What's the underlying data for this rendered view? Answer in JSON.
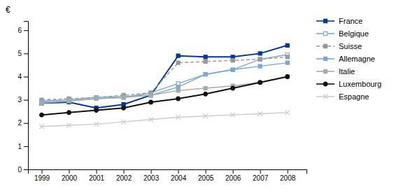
{
  "chart_data": {
    "type": "line",
    "y_label": "€",
    "x": [
      1999,
      2000,
      2001,
      2002,
      2003,
      2004,
      2005,
      2006,
      2007,
      2008
    ],
    "series": [
      {
        "name": "France",
        "color": "#003a99",
        "marker": "square",
        "line_style": "solid",
        "values": [
          2.85,
          2.9,
          2.65,
          2.8,
          3.2,
          4.9,
          4.85,
          4.85,
          5.0,
          5.35
        ]
      },
      {
        "name": "Belgique",
        "color": "#7ba7d4",
        "marker": "square-open",
        "line_style": "solid",
        "values": [
          2.9,
          2.95,
          3.05,
          3.1,
          3.3,
          3.7,
          4.1,
          4.3,
          4.75,
          4.95
        ]
      },
      {
        "name": "Suisse",
        "color": "#999999",
        "marker": "square",
        "line_style": "dashed",
        "values": [
          3.0,
          3.05,
          3.1,
          3.2,
          3.3,
          4.6,
          4.65,
          4.7,
          4.75,
          4.85
        ]
      },
      {
        "name": "Allemagne",
        "color": "#7ba7d4",
        "marker": "square",
        "line_style": "solid",
        "values": [
          2.95,
          3.0,
          3.1,
          3.15,
          3.2,
          3.55,
          4.1,
          4.3,
          4.45,
          4.6
        ]
      },
      {
        "name": "Italie",
        "color": "#aaaaaa",
        "marker": "square",
        "line_style": "solid",
        "values": [
          2.85,
          2.95,
          3.05,
          3.1,
          3.2,
          3.4,
          3.5,
          3.6,
          3.75,
          4.0
        ]
      },
      {
        "name": "Luxembourg",
        "color": "#111111",
        "marker": "circle",
        "line_style": "solid",
        "values": [
          2.35,
          2.45,
          2.55,
          2.65,
          2.9,
          3.05,
          3.25,
          3.5,
          3.75,
          4.0
        ]
      },
      {
        "name": "Espagne",
        "color": "#cccccc",
        "marker": "x",
        "line_style": "solid",
        "values": [
          1.85,
          1.9,
          1.95,
          2.05,
          2.15,
          2.25,
          2.3,
          2.35,
          2.4,
          2.45
        ]
      }
    ],
    "xlim": [
      1998.5,
      2008.7
    ],
    "xticks": [
      1999,
      2000,
      2001,
      2002,
      2003,
      2004,
      2005,
      2006,
      2007,
      2008
    ],
    "ylim": [
      0,
      6.4
    ],
    "yticks": [
      0,
      1,
      2,
      3,
      4,
      5,
      6
    ],
    "grid": false,
    "legend": "right"
  }
}
